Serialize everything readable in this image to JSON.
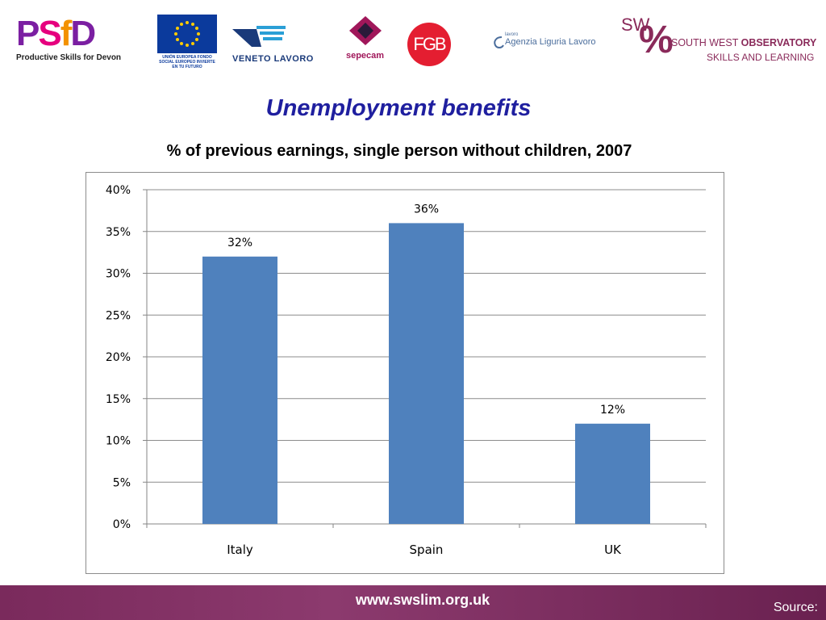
{
  "logos": {
    "psfd": {
      "mark": "PSfD",
      "tagline": "Productive Skills for Devon"
    },
    "eu": {
      "caption": "UNIÓN EUROPEA FONDO SOCIAL EUROPEO INVIERTE EN TU FUTURO"
    },
    "veneto": {
      "text": "VENETO LAVORO"
    },
    "sepecam": {
      "text": "sepecam"
    },
    "fgb": {
      "text": "FGB"
    },
    "liguria": {
      "small": "lavoro",
      "text": "Agenzia Liguria Lavoro"
    },
    "swo": {
      "sw": "SW",
      "line1_a": "SOUTH WEST ",
      "line1_b": "OBSERVATORY",
      "line2": "SKILLS AND LEARNING"
    }
  },
  "title": "Unemployment benefits",
  "subtitle": "% of previous earnings, single person without children, 2007",
  "colors": {
    "bar": "#4f81bd",
    "title": "#1f1f9f",
    "footer": "#7a2a5c"
  },
  "chart_data": {
    "type": "bar",
    "title": "% of previous earnings, single person without children, 2007",
    "categories": [
      "Italy",
      "Spain",
      "UK"
    ],
    "values": [
      32,
      36,
      12
    ],
    "data_labels": [
      "32%",
      "36%",
      "12%"
    ],
    "ylim": [
      0,
      40
    ],
    "yticks": [
      "0%",
      "5%",
      "10%",
      "15%",
      "20%",
      "25%",
      "30%",
      "35%",
      "40%"
    ],
    "xlabel": "",
    "ylabel": "",
    "grid": true,
    "legend": "none"
  },
  "footer": {
    "url": "www.swslim.org.uk",
    "source": "Source:"
  }
}
